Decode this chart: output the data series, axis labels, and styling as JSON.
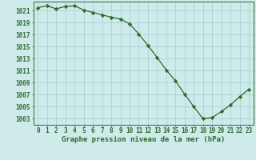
{
  "x": [
    0,
    1,
    2,
    3,
    4,
    5,
    6,
    7,
    8,
    9,
    10,
    11,
    12,
    13,
    14,
    15,
    16,
    17,
    18,
    19,
    20,
    21,
    22,
    23
  ],
  "y": [
    1021.5,
    1021.8,
    1021.3,
    1021.7,
    1021.8,
    1021.1,
    1020.7,
    1020.3,
    1019.9,
    1019.6,
    1018.8,
    1017.1,
    1015.2,
    1013.2,
    1011.1,
    1009.3,
    1007.1,
    1005.0,
    1003.0,
    1003.2,
    1004.2,
    1005.3,
    1006.7,
    1007.9
  ],
  "line_color": "#2d6a2d",
  "marker": "D",
  "marker_size": 2.2,
  "bg_color": "#ceeaea",
  "grid_color": "#a8d4d4",
  "ylabel_ticks": [
    1003,
    1005,
    1007,
    1009,
    1011,
    1013,
    1015,
    1017,
    1019,
    1021
  ],
  "ylim": [
    1002.0,
    1022.5
  ],
  "xlim": [
    -0.5,
    23.5
  ],
  "xlabel": "Graphe pression niveau de la mer (hPa)",
  "xlabel_fontsize": 6.5,
  "tick_fontsize": 5.5,
  "axis_color": "#2d6a2d",
  "linewidth": 0.9
}
